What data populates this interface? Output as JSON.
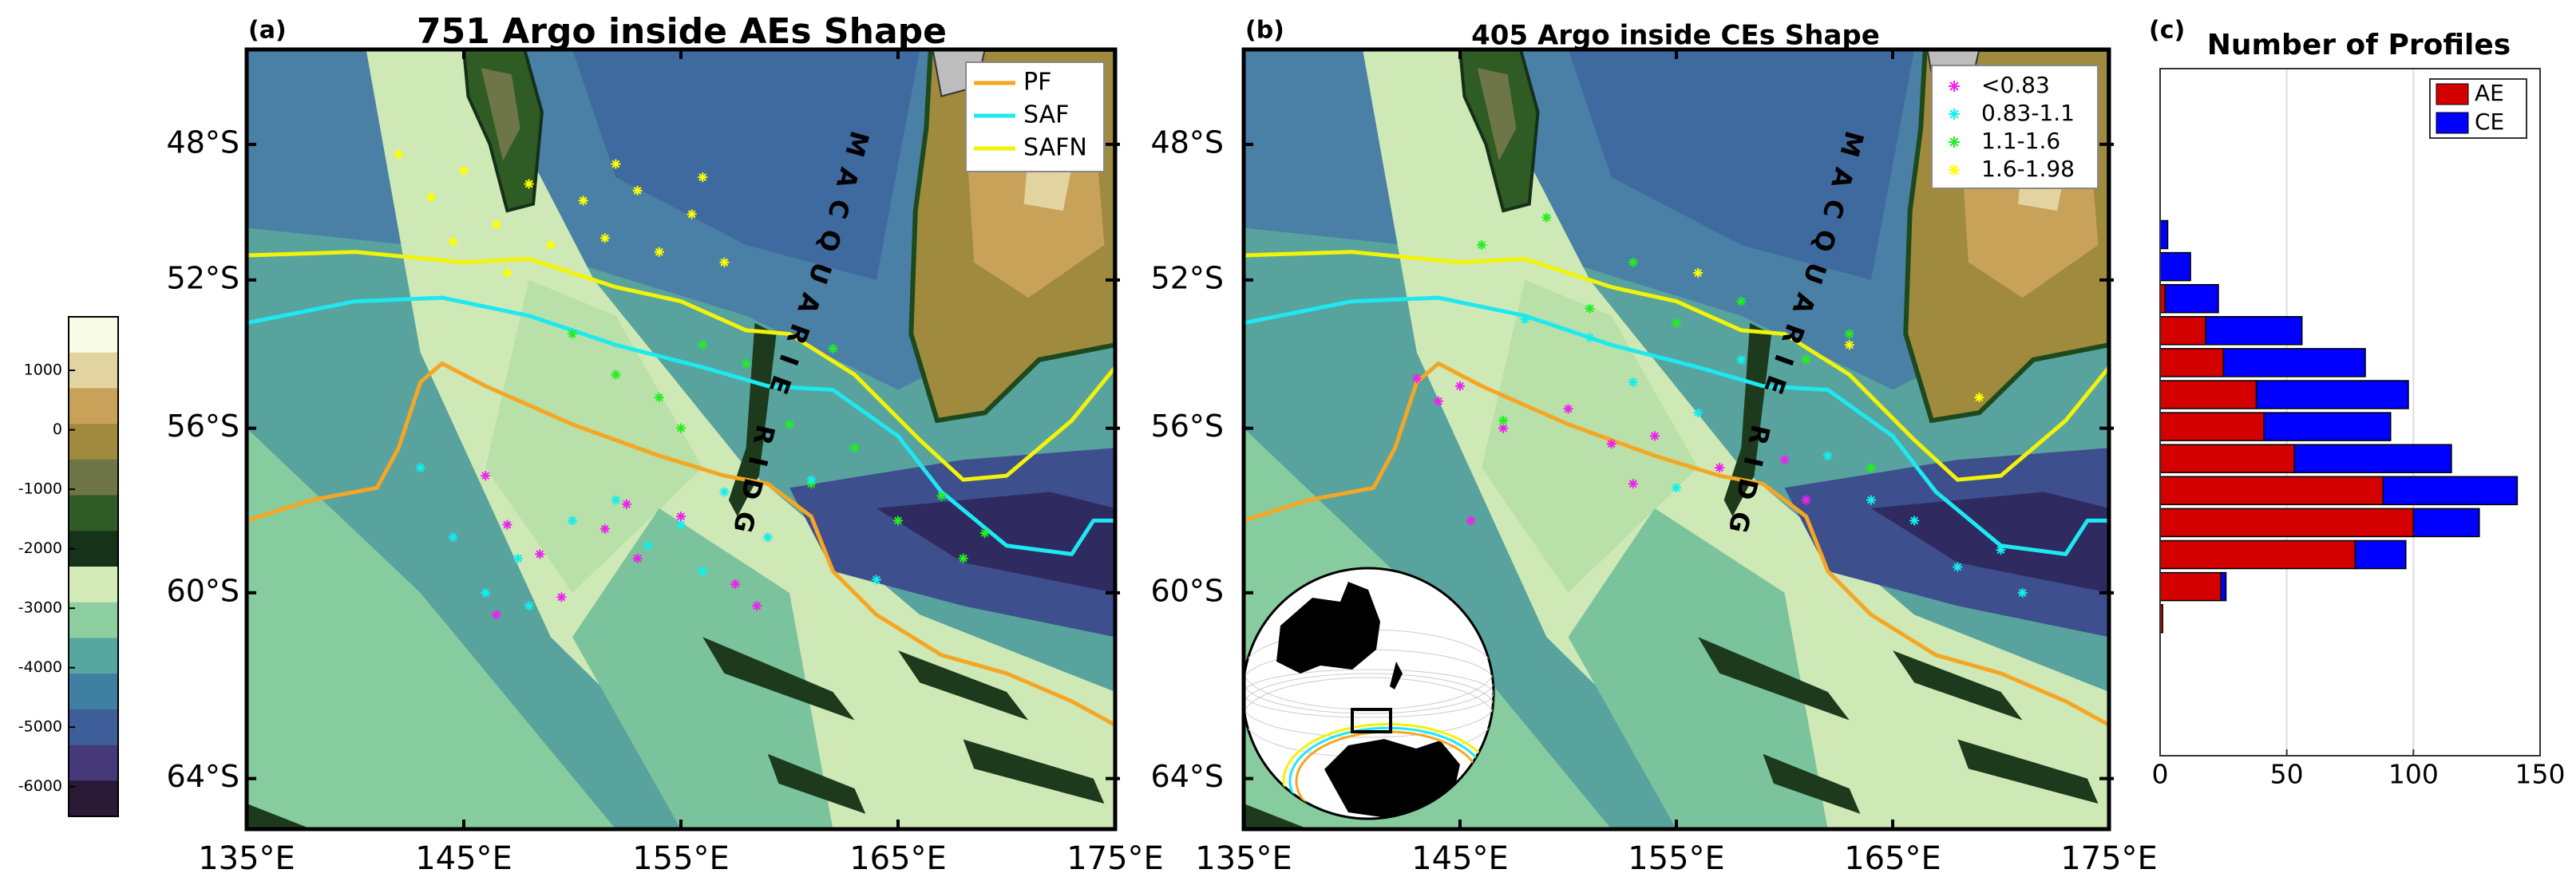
{
  "chart_data": [
    {
      "type": "map",
      "panel": "(a)",
      "title": "751 Argo inside AEs Shape",
      "projection": "mercator",
      "xlim": [
        135,
        175
      ],
      "ylim": [
        -65,
        -45
      ],
      "xticks": [
        {
          "value": 135,
          "label": "135°E"
        },
        {
          "value": 145,
          "label": "145°E"
        },
        {
          "value": 155,
          "label": "155°E"
        },
        {
          "value": 165,
          "label": "165°E"
        },
        {
          "value": 175,
          "label": "175°E"
        }
      ],
      "yticks": [
        {
          "value": -48,
          "label": "48°S"
        },
        {
          "value": -52,
          "label": "52°S"
        },
        {
          "value": -56,
          "label": "56°S"
        },
        {
          "value": -60,
          "label": "60°S"
        },
        {
          "value": -64,
          "label": "64°S"
        }
      ],
      "ridge_label": "MACQUARIE RIDGE",
      "legend": "upper right",
      "series": [
        {
          "name": "PF",
          "color": "#f5a623",
          "x": [
            135,
            138,
            141,
            142,
            143,
            144,
            146,
            150,
            154,
            157,
            159,
            161,
            162,
            164,
            167,
            170,
            173,
            175
          ],
          "values": [
            -58.3,
            -57.8,
            -57.5,
            -56.5,
            -54.8,
            -54.3,
            -54.9,
            -55.9,
            -56.7,
            -57.2,
            -57.4,
            -58.2,
            -59.5,
            -60.5,
            -61.4,
            -61.8,
            -62.4,
            -62.9
          ]
        },
        {
          "name": "SAF",
          "color": "#1ee8f0",
          "x": [
            135,
            140,
            144,
            148,
            152,
            156,
            159,
            162,
            165,
            167,
            170,
            173,
            174,
            175
          ],
          "values": [
            -53.2,
            -52.6,
            -52.5,
            -53.0,
            -53.8,
            -54.4,
            -54.9,
            -55.0,
            -56.2,
            -57.6,
            -58.9,
            -59.1,
            -58.3,
            -58.3
          ]
        },
        {
          "name": "SAFN",
          "color": "#f2f20a",
          "x": [
            135,
            140,
            145,
            148,
            152,
            155,
            158,
            160,
            163,
            166,
            168,
            170,
            173,
            175
          ],
          "values": [
            -51.3,
            -51.2,
            -51.5,
            -51.4,
            -52.2,
            -52.6,
            -53.4,
            -53.5,
            -54.6,
            -56.3,
            -57.3,
            -57.2,
            -55.8,
            -54.4
          ]
        }
      ],
      "points": [
        {
          "color": "#ffff00",
          "x": [
            142,
            143.5,
            145,
            146.5,
            148,
            149,
            150.5,
            151.5,
            153,
            154,
            155.5,
            157,
            147,
            152,
            144.5,
            156
          ],
          "values": [
            -48.3,
            -49.6,
            -48.8,
            -50.4,
            -49.2,
            -51,
            -49.7,
            -50.8,
            -49.4,
            -51.2,
            -50.1,
            -51.5,
            -51.8,
            -48.6,
            -50.9,
            -49
          ]
        },
        {
          "color": "#22ee22",
          "x": [
            150,
            152,
            154,
            156,
            158,
            160,
            161,
            163,
            165,
            167,
            168,
            169,
            155,
            162
          ],
          "values": [
            -53.5,
            -54.6,
            -55.2,
            -53.8,
            -54.3,
            -55.9,
            -57.4,
            -56.5,
            -58.3,
            -57.7,
            -59.2,
            -58.6,
            -56,
            -53.9
          ]
        },
        {
          "color": "#11eeee",
          "x": [
            143,
            144.5,
            146,
            147.5,
            150,
            152,
            153.5,
            155,
            157,
            159,
            161,
            164,
            148,
            156
          ],
          "values": [
            -57,
            -58.7,
            -60,
            -59.2,
            -58.3,
            -57.8,
            -58.9,
            -58.4,
            -57.6,
            -58.7,
            -57.3,
            -59.7,
            -60.3,
            -59.5
          ]
        },
        {
          "color": "#ee22ee",
          "x": [
            146,
            147,
            148.5,
            149.5,
            151.5,
            153,
            155,
            157.5,
            158.5,
            146.5,
            152.5
          ],
          "values": [
            -57.2,
            -58.4,
            -59.1,
            -60.1,
            -58.5,
            -59.2,
            -58.2,
            -59.8,
            -60.3,
            -60.5,
            -57.9
          ]
        }
      ],
      "colorbar": {
        "lim": [
          -6500,
          1900
        ],
        "ticks": [
          1000,
          0,
          -1000,
          -2000,
          -3000,
          -4000,
          -5000,
          -6000
        ],
        "colors": [
          "#f7fbe8",
          "#e2d4a0",
          "#c9a25a",
          "#a08a3e",
          "#6e7546",
          "#2f5b24",
          "#163219",
          "#d5ebb7",
          "#8dcfa0",
          "#56a89f",
          "#3f80a2",
          "#3e5e99",
          "#46397a",
          "#2a1a36"
        ]
      }
    },
    {
      "type": "map",
      "panel": "(b)",
      "title": "405 Argo inside CEs Shape",
      "projection": "mercator",
      "xlim": [
        135,
        175
      ],
      "ylim": [
        -65,
        -45
      ],
      "xticks": [
        {
          "value": 135,
          "label": "135°E"
        },
        {
          "value": 145,
          "label": "145°E"
        },
        {
          "value": 155,
          "label": "155°E"
        },
        {
          "value": 165,
          "label": "165°E"
        },
        {
          "value": 175,
          "label": "175°E"
        }
      ],
      "yticks": [
        {
          "value": -48,
          "label": "48°S"
        },
        {
          "value": -52,
          "label": "52°S"
        },
        {
          "value": -56,
          "label": "56°S"
        },
        {
          "value": -60,
          "label": "60°S"
        },
        {
          "value": -64,
          "label": "64°S"
        }
      ],
      "ridge_label": "MACQUARIE RIDGE",
      "legend": "upper right",
      "inset": true,
      "points": [
        {
          "name": "<0.83",
          "color": "#ee22ee",
          "x": [
            143,
            144,
            145,
            147,
            150,
            152,
            154,
            157,
            160,
            161,
            145.5,
            153
          ],
          "values": [
            -54.7,
            -55.3,
            -54.9,
            -56,
            -55.5,
            -56.4,
            -56.2,
            -57,
            -56.8,
            -57.8,
            -58.3,
            -57.4
          ]
        },
        {
          "name": "0.83-1.1",
          "color": "#11eeee",
          "x": [
            148,
            151,
            153,
            156,
            158,
            162,
            164,
            166,
            168,
            170,
            171,
            155
          ],
          "values": [
            -53.1,
            -53.6,
            -54.8,
            -55.6,
            -54.2,
            -56.7,
            -57.8,
            -58.3,
            -59.4,
            -59,
            -60,
            -57.5
          ]
        },
        {
          "name": "1.1-1.6",
          "color": "#22ee22",
          "x": [
            146,
            149,
            151,
            153,
            155,
            158,
            161,
            163,
            147,
            164
          ],
          "values": [
            -51,
            -50.2,
            -52.8,
            -51.5,
            -53.2,
            -52.6,
            -54.2,
            -53.5,
            -55.8,
            -57
          ]
        },
        {
          "name": "1.6-1.98",
          "color": "#ffff00",
          "x": [
            163,
            169,
            156
          ],
          "values": [
            -53.8,
            -55.2,
            -51.8
          ]
        }
      ]
    },
    {
      "type": "bar",
      "orientation": "horizontal",
      "stacked": true,
      "panel": "(c)",
      "title": "Number of Profiles",
      "categories": [
        null,
        null,
        null,
        null,
        null,
        null,
        null,
        null,
        null,
        null,
        null,
        null,
        null
      ],
      "series": [
        {
          "name": "AE",
          "color": "#d40000",
          "values": [
            0,
            0,
            2,
            18,
            25,
            38,
            41,
            53,
            88,
            100,
            77,
            24,
            1
          ]
        },
        {
          "name": "CE",
          "color": "#0000ff",
          "values": [
            3,
            12,
            21,
            38,
            56,
            60,
            50,
            62,
            53,
            26,
            20,
            2,
            0
          ]
        }
      ],
      "xlim": [
        0,
        150
      ],
      "xticks": [
        0,
        50,
        100,
        150
      ],
      "grid": true,
      "legend": "upper right"
    }
  ]
}
